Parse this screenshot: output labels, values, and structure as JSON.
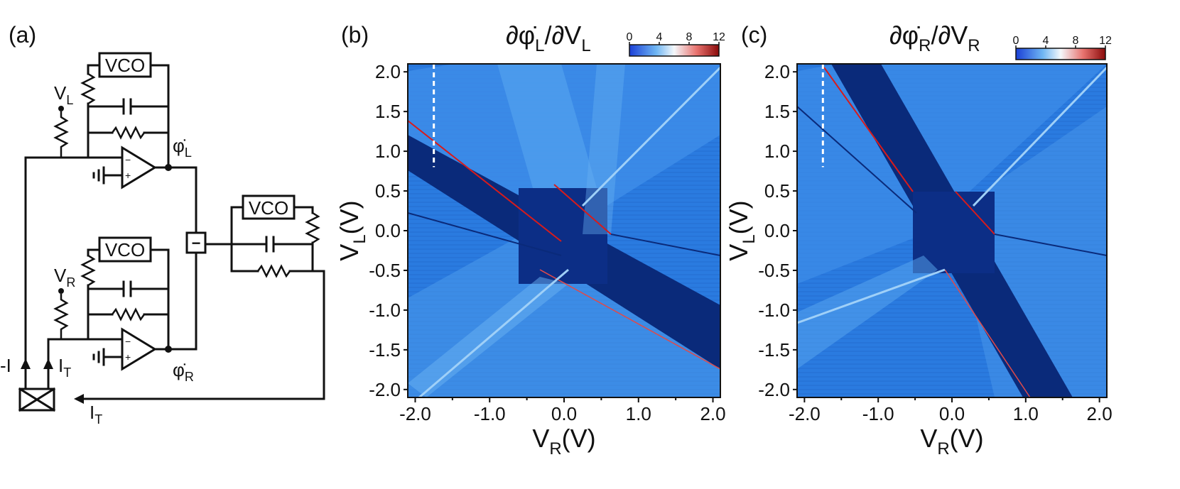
{
  "panel_a": {
    "label": "(a)",
    "vco_top": "VCO",
    "vco_mid": "VCO",
    "vco_right": "VCO",
    "v_left": "V",
    "v_left_sub": "L",
    "v_right": "V",
    "v_right_sub": "R",
    "phi_left": "φ̇",
    "phi_left_sub": "L",
    "phi_right": "φ̇",
    "phi_right_sub": "R",
    "minus_box": "−",
    "current_neg": "-I",
    "current_t": "I",
    "current_t_sub": "T",
    "current_bottom": "I",
    "current_bottom_sub": "T"
  },
  "chart_data": [
    {
      "type": "heatmap",
      "panel_label": "(b)",
      "title_main": "∂φ̇",
      "title_sub1": "L",
      "title_mid": "/∂V",
      "title_sub2": "L",
      "xlabel": "V",
      "xlabel_sub": "R",
      "xlabel_unit": "(V)",
      "ylabel": "V",
      "ylabel_sub": "L",
      "ylabel_unit": "(V)",
      "xlim": [
        -2.1,
        2.1
      ],
      "ylim": [
        -2.1,
        2.1
      ],
      "xticks": [
        "-2.0",
        "-1.0",
        "0.0",
        "1.0",
        "2.0"
      ],
      "yticks": [
        "2.0",
        "1.5",
        "1.0",
        "0.5",
        "0.0",
        "-0.5",
        "-1.0",
        "-1.5",
        "-2.0"
      ],
      "colorbar_ticks": [
        "0",
        "4",
        "8",
        "12"
      ],
      "colorbar_range": [
        0,
        12
      ],
      "dashed_line_x": -1.75,
      "dashed_line_y": [
        0.8,
        2.1
      ]
    },
    {
      "type": "heatmap",
      "panel_label": "(c)",
      "title_main": "∂φ̇",
      "title_sub1": "R",
      "title_mid": "/∂V",
      "title_sub2": "R",
      "xlabel": "V",
      "xlabel_sub": "R",
      "xlabel_unit": "(V)",
      "ylabel": "V",
      "ylabel_sub": "L",
      "ylabel_unit": "(V)",
      "xlim": [
        -2.1,
        2.1
      ],
      "ylim": [
        -2.1,
        2.1
      ],
      "xticks": [
        "-2.0",
        "-1.0",
        "0.0",
        "1.0",
        "2.0"
      ],
      "yticks": [
        "2.0",
        "1.5",
        "1.0",
        "0.5",
        "0.0",
        "-0.5",
        "-1.0",
        "-1.5",
        "-2.0"
      ],
      "colorbar_ticks": [
        "0",
        "4",
        "8",
        "12"
      ],
      "colorbar_range": [
        0,
        12
      ],
      "dashed_line_x": -1.75,
      "dashed_line_y": [
        0.8,
        2.1
      ]
    }
  ],
  "colors": {
    "map_bg": "#1f6fd8",
    "map_light": "#5aa8f0",
    "map_dark": "#0a2a7a",
    "map_hot": "#d81b1b",
    "ink": "#111111"
  }
}
